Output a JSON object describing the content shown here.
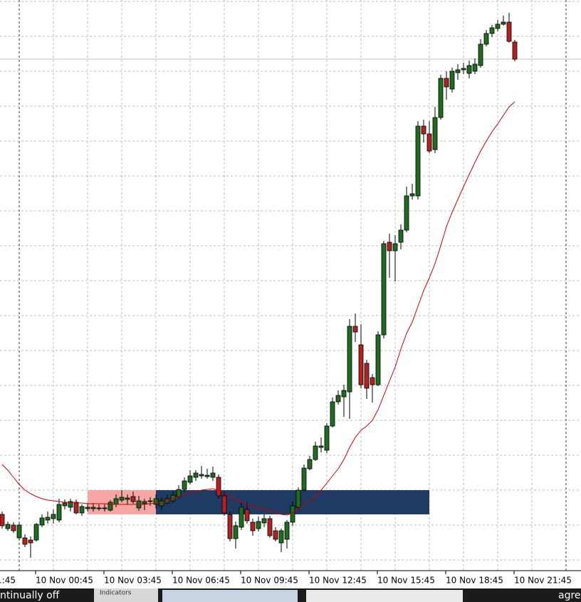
{
  "chart_data": {
    "type": "candlestick",
    "categories": [
      null,
      null,
      null,
      null,
      null,
      null,
      "10 Nov 00:45",
      null,
      null,
      null,
      null,
      null,
      null,
      null,
      null,
      null,
      null,
      null,
      "10 Nov 03:45",
      null,
      null,
      null,
      null,
      null,
      null,
      null,
      null,
      null,
      null,
      null,
      "10 Nov 06:45",
      null,
      null,
      null,
      null,
      null,
      null,
      null,
      null,
      null,
      null,
      null,
      "10 Nov 09:45",
      null,
      null,
      null,
      null,
      null,
      null,
      null,
      null,
      null,
      null,
      null,
      "10 Nov 12:45",
      null,
      null,
      null,
      null,
      null,
      null,
      null,
      null,
      null,
      null,
      null,
      "10 Nov 15:45",
      null,
      null,
      null,
      null,
      null,
      null,
      null,
      null,
      null,
      null,
      null,
      "10 Nov 18:45",
      null,
      null,
      null,
      null,
      null,
      null,
      null,
      null,
      null,
      null,
      null,
      "10 Nov 21:45"
    ],
    "clipped_label": "1:45",
    "open": [
      78,
      58,
      63,
      45,
      45,
      42,
      42,
      63,
      70,
      72,
      70,
      90,
      88,
      95,
      80,
      86,
      86,
      86,
      86,
      84,
      92,
      98,
      99,
      103,
      87,
      93,
      96,
      92,
      90,
      94,
      97,
      103,
      113,
      123,
      130,
      132,
      131,
      130,
      130,
      104,
      78,
      44,
      60,
      85,
      67,
      58,
      66,
      72,
      55,
      38,
      43,
      67,
      88,
      112,
      142,
      155,
      172,
      168,
      202,
      236,
      243,
      250,
      342,
      316,
      290,
      270,
      260,
      330,
      460,
      448,
      460,
      477,
      525,
      525,
      623,
      612,
      590,
      635,
      690,
      675,
      698,
      702,
      697,
      700,
      708,
      738,
      753,
      760,
      766,
      769,
      741
    ],
    "close": [
      62,
      64,
      55,
      63,
      36,
      38,
      64,
      73,
      74,
      78,
      92,
      94,
      96,
      80,
      89,
      88,
      88,
      87,
      87,
      95,
      100,
      102,
      101,
      96,
      97,
      96,
      97,
      100,
      97,
      100,
      105,
      113,
      125,
      132,
      136,
      134,
      133,
      136,
      104,
      80,
      44,
      62,
      88,
      69,
      55,
      68,
      72,
      48,
      43,
      55,
      67,
      90,
      112,
      143,
      155,
      174,
      174,
      202,
      236,
      245,
      252,
      342,
      334,
      260,
      255,
      260,
      330,
      458,
      448,
      458,
      477,
      525,
      528,
      623,
      612,
      588,
      635,
      690,
      678,
      700,
      702,
      704,
      708,
      710,
      738,
      753,
      761,
      766,
      769,
      742,
      717
    ],
    "high": [
      82,
      68,
      67,
      65,
      50,
      47,
      66,
      78,
      82,
      85,
      100,
      99,
      100,
      99,
      92,
      94,
      94,
      92,
      92,
      98,
      106,
      112,
      106,
      110,
      104,
      100,
      102,
      106,
      102,
      106,
      110,
      119,
      130,
      140,
      140,
      146,
      142,
      145,
      134,
      110,
      82,
      68,
      95,
      95,
      72,
      75,
      78,
      76,
      60,
      58,
      70,
      96,
      116,
      148,
      160,
      180,
      186,
      206,
      242,
      252,
      260,
      352,
      360,
      345,
      295,
      275,
      335,
      462,
      472,
      470,
      485,
      538,
      542,
      630,
      632,
      630,
      650,
      695,
      700,
      705,
      710,
      712,
      715,
      718,
      745,
      758,
      765,
      772,
      778,
      782,
      744
    ],
    "low": [
      58,
      55,
      52,
      42,
      32,
      17,
      40,
      60,
      65,
      65,
      67,
      85,
      82,
      78,
      76,
      82,
      82,
      83,
      82,
      82,
      88,
      95,
      92,
      93,
      83,
      84,
      90,
      86,
      84,
      92,
      94,
      100,
      110,
      120,
      125,
      128,
      128,
      125,
      100,
      76,
      40,
      30,
      56,
      65,
      48,
      54,
      60,
      45,
      40,
      25,
      30,
      62,
      84,
      110,
      140,
      153,
      165,
      164,
      200,
      232,
      215,
      212,
      320,
      255,
      240,
      235,
      258,
      325,
      410,
      405,
      450,
      474,
      520,
      520,
      600,
      585,
      585,
      632,
      660,
      670,
      688,
      696,
      690,
      696,
      705,
      735,
      748,
      756,
      764,
      740,
      714
    ],
    "up_color": "#1f6b1f",
    "down_color": "#b22222",
    "ma": {
      "color": "#cc0000",
      "values": [
        148,
        140,
        130,
        120,
        112,
        107,
        103,
        100,
        98,
        97,
        96,
        95,
        95,
        94,
        94,
        93,
        93,
        93,
        93,
        92,
        92,
        92,
        92,
        92,
        92,
        92,
        93,
        94,
        95,
        97,
        100,
        103,
        106,
        108,
        110,
        112,
        113,
        114,
        112,
        108,
        103,
        99,
        95,
        92,
        89,
        87,
        85,
        83,
        80,
        78,
        77,
        80,
        86,
        92,
        98,
        103,
        112,
        122,
        132,
        142,
        155,
        172,
        186,
        196,
        202,
        210,
        225,
        245,
        265,
        285,
        310,
        332,
        348,
        370,
        392,
        410,
        430,
        455,
        482,
        502,
        520,
        538,
        555,
        572,
        588,
        602,
        615,
        626,
        638,
        650,
        657
      ]
    },
    "zones": [
      {
        "color": "#f7a6a6",
        "start": 15,
        "end": 27,
        "top": 112,
        "bottom": 78
      },
      {
        "color": "#1f3a63",
        "start": 27,
        "end": 75,
        "top": 112,
        "bottom": 78
      }
    ],
    "ylim": [
      0,
      800
    ],
    "ygrid": [
      798,
      749,
      700,
      651,
      602,
      553,
      504,
      455,
      406,
      357,
      308,
      259,
      210,
      161,
      112,
      63,
      14
    ],
    "price_line_color": "#c0c0c0"
  },
  "taskbar": {
    "left_text": "ntinually off",
    "tab": "Indicators",
    "right_text": "agreei"
  }
}
